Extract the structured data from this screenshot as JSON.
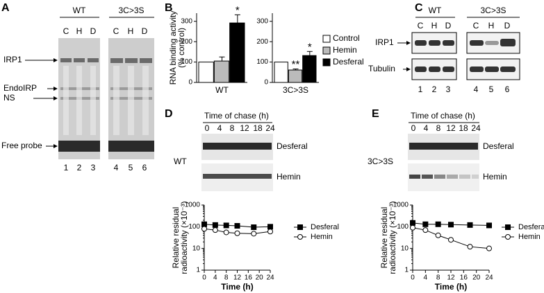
{
  "panel_a": {
    "label": "A",
    "groups": [
      "WT",
      "3C>3S"
    ],
    "lanes": [
      "C",
      "H",
      "D",
      "C",
      "H",
      "D"
    ],
    "lane_numbers": [
      "1",
      "2",
      "3",
      "4",
      "5",
      "6"
    ],
    "bands": [
      "IRP1",
      "EndoIRP",
      "NS",
      "Free probe"
    ]
  },
  "panel_c": {
    "label": "C",
    "groups": [
      "WT",
      "3C>3S"
    ],
    "lanes": [
      "C",
      "H",
      "D",
      "C",
      "H",
      "D"
    ],
    "rows": [
      "IRP1",
      "Tubulin"
    ],
    "lane_numbers": [
      "1",
      "2",
      "3",
      "4",
      "5",
      "6"
    ]
  },
  "panel_d": {
    "label": "D",
    "header": "Time of chase (h)",
    "lanes": [
      "0",
      "4",
      "8",
      "12",
      "18",
      "24"
    ],
    "rows": [
      "Desferal",
      "Hemin"
    ],
    "genotype": "WT"
  },
  "panel_e": {
    "label": "E",
    "header": "Time of chase (h)",
    "lanes": [
      "0",
      "4",
      "8",
      "12",
      "18",
      "24"
    ],
    "rows": [
      "Desferal",
      "Hemin"
    ],
    "genotype": "3C>3S"
  },
  "chart_data": [
    {
      "type": "bar",
      "panel_label": "B",
      "y_label": [
        "RNA binding activity",
        "(% control)"
      ],
      "categories": [
        "WT"
      ],
      "ylim": [
        0,
        340
      ],
      "yticks": [
        0,
        100,
        200,
        300
      ],
      "series": [
        {
          "name": "Control",
          "color": "#ffffff",
          "values": [
            100
          ]
        },
        {
          "name": "Hemin",
          "color": "#bbbbbb",
          "values": [
            105
          ],
          "errors": [
            20
          ]
        },
        {
          "name": "Desferal",
          "color": "#000000",
          "values": [
            292
          ],
          "errors": [
            40
          ],
          "significance": [
            "*"
          ]
        }
      ]
    },
    {
      "type": "bar",
      "categories": [
        "3C>3S"
      ],
      "ylim": [
        0,
        340
      ],
      "yticks": [
        0,
        100,
        200,
        300
      ],
      "legend": true,
      "series": [
        {
          "name": "Control",
          "color": "#ffffff",
          "values": [
            100
          ]
        },
        {
          "name": "Hemin",
          "color": "#bbbbbb",
          "values": [
            61
          ],
          "errors": [
            5
          ],
          "significance": [
            "**"
          ]
        },
        {
          "name": "Desferal",
          "color": "#000000",
          "values": [
            132
          ],
          "errors": [
            20
          ],
          "significance": [
            "*"
          ]
        }
      ]
    },
    {
      "type": "line",
      "yscale": "log",
      "x_label": "Time (h)",
      "y_label": [
        "Relative residual",
        "radioactivity (×10⁻³)"
      ],
      "x": [
        0,
        4,
        8,
        12,
        18,
        24
      ],
      "xlim": [
        0,
        24
      ],
      "xticks": [
        0,
        4,
        8,
        12,
        16,
        20,
        24
      ],
      "ylim": [
        1,
        1000
      ],
      "yticks": [
        1,
        10,
        100,
        1000
      ],
      "series": [
        {
          "name": "Desferal",
          "color": "#000000",
          "marker": "square",
          "marker_fill": "#000000",
          "values": [
            130,
            120,
            115,
            110,
            95,
            100
          ]
        },
        {
          "name": "Hemin",
          "color": "#000000",
          "marker": "circle",
          "marker_fill": "#ffffff",
          "values": [
            80,
            70,
            55,
            50,
            48,
            60
          ]
        }
      ]
    },
    {
      "type": "line",
      "yscale": "log",
      "x_label": "Time (h)",
      "y_label": [
        "Relative residual",
        "radioactivity (×10⁻³)"
      ],
      "x": [
        0,
        4,
        8,
        12,
        18,
        24
      ],
      "xlim": [
        0,
        24
      ],
      "xticks": [
        0,
        4,
        8,
        12,
        16,
        20,
        24
      ],
      "ylim": [
        1,
        1000
      ],
      "yticks": [
        1,
        10,
        100,
        1000
      ],
      "series": [
        {
          "name": "Desferal",
          "color": "#000000",
          "marker": "square",
          "marker_fill": "#000000",
          "values": [
            150,
            130,
            130,
            125,
            120,
            115
          ]
        },
        {
          "name": "Hemin",
          "color": "#000000",
          "marker": "circle",
          "marker_fill": "#ffffff",
          "values": [
            90,
            70,
            40,
            25,
            12,
            10
          ]
        }
      ]
    }
  ]
}
